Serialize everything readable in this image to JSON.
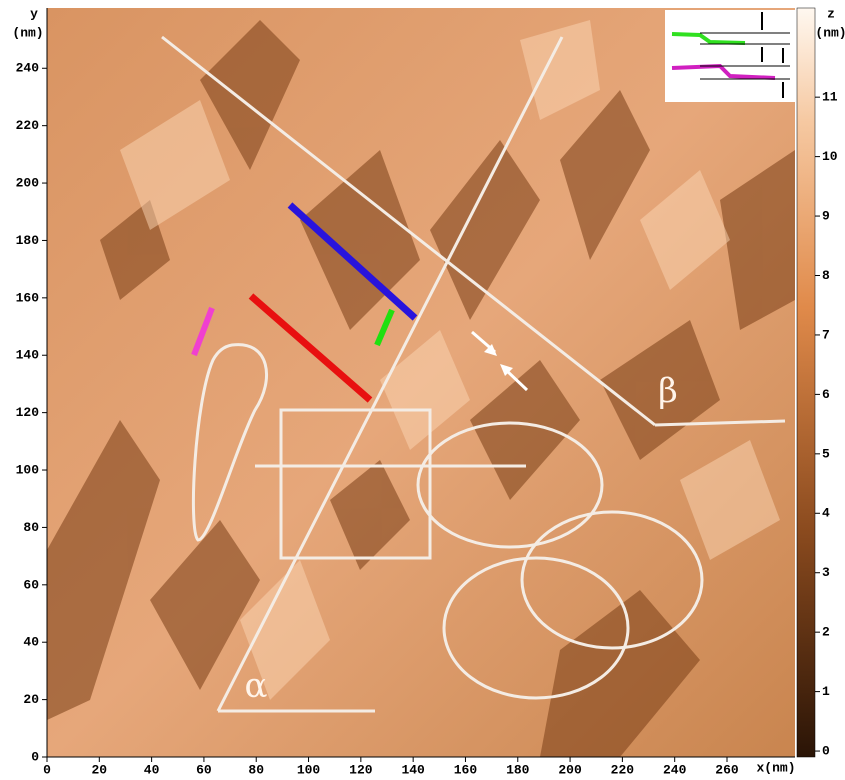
{
  "chart_data": {
    "type": "image",
    "xlabel": "x(nm)",
    "ylabel": "y",
    "yunit": "(nm)",
    "zlabel": "z",
    "zunit": "(nm)",
    "annotations": [
      "α",
      "β"
    ],
    "xlim": [
      0,
      286
    ],
    "xticks": [
      0,
      20,
      40,
      60,
      80,
      100,
      120,
      140,
      160,
      180,
      200,
      220,
      240,
      260
    ],
    "ylim": [
      0,
      261
    ],
    "yticks": [
      0,
      20,
      40,
      60,
      80,
      100,
      120,
      140,
      160,
      180,
      200,
      220,
      240
    ],
    "zlim": [
      -0.1,
      12.5
    ],
    "zticks": [
      0,
      1,
      2,
      3,
      4,
      5,
      6,
      7,
      8,
      9,
      10,
      11
    ]
  }
}
